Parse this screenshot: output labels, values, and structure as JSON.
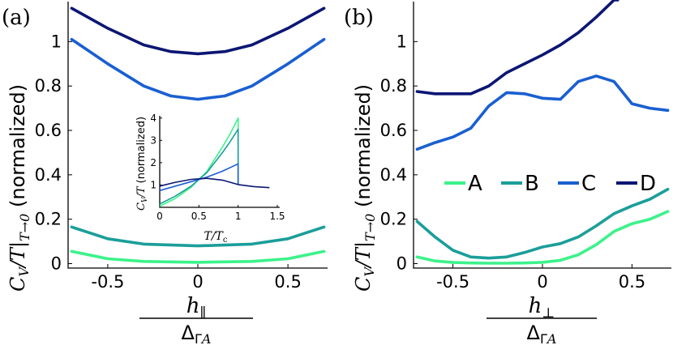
{
  "chart_data": [
    {
      "id": "a",
      "type": "line",
      "panel_label": "(a)",
      "ylabel": "C_V/T|_{T→0} (normalized)",
      "xlabel": "h_∥ / Δ_{ΓA}",
      "xlim": [
        -0.72,
        0.72
      ],
      "ylim": [
        -0.02,
        1.18
      ],
      "xticks": [
        -0.5,
        0,
        0.5
      ],
      "xtick_labels": [
        "-0.5",
        "0",
        "0.5"
      ],
      "yticks": [
        0,
        0.2,
        0.4,
        0.6,
        0.8,
        1
      ],
      "ytick_labels": [
        "0",
        "0.2",
        "0.4",
        "0.6",
        "0.8",
        "1"
      ],
      "series": [
        {
          "name": "A",
          "color": "#3cf28a",
          "x": [
            -0.7,
            -0.5,
            -0.3,
            0,
            0.3,
            0.5,
            0.7
          ],
          "y": [
            0.055,
            0.022,
            0.01,
            0.006,
            0.01,
            0.022,
            0.055
          ]
        },
        {
          "name": "B",
          "color": "#1b9e9a",
          "x": [
            -0.7,
            -0.5,
            -0.3,
            0,
            0.3,
            0.5,
            0.7
          ],
          "y": [
            0.165,
            0.112,
            0.088,
            0.08,
            0.088,
            0.112,
            0.165
          ]
        },
        {
          "name": "C",
          "color": "#1a5fd1",
          "x": [
            -0.7,
            -0.5,
            -0.3,
            -0.15,
            0,
            0.15,
            0.3,
            0.5,
            0.7
          ],
          "y": [
            1.01,
            0.9,
            0.8,
            0.755,
            0.74,
            0.755,
            0.8,
            0.9,
            1.01
          ]
        },
        {
          "name": "D",
          "color": "#0c1673",
          "x": [
            -0.7,
            -0.5,
            -0.3,
            -0.15,
            0,
            0.15,
            0.3,
            0.5,
            0.7
          ],
          "y": [
            1.15,
            1.06,
            0.985,
            0.955,
            0.945,
            0.955,
            0.985,
            1.06,
            1.15
          ]
        }
      ],
      "inset": {
        "xlabel": "T/T_c",
        "ylabel": "C_V/T (normalized)",
        "xlim": [
          0,
          1.5
        ],
        "ylim": [
          0,
          4.1
        ],
        "xticks": [
          0,
          0.5,
          1,
          1.5
        ],
        "xtick_labels": [
          "0",
          "0.5",
          "1",
          "1.5"
        ],
        "yticks": [
          1,
          2,
          3,
          4
        ],
        "ytick_labels": [
          "1",
          "2",
          "3",
          "4"
        ],
        "series": [
          {
            "name": "A",
            "color": "#3cf28a",
            "x": [
              0,
              0.2,
              0.4,
              0.6,
              0.8,
              0.9,
              1.0,
              1.0
            ],
            "y": [
              0.05,
              0.4,
              0.9,
              1.6,
              2.7,
              3.3,
              4.0,
              1.0
            ]
          },
          {
            "name": "B",
            "color": "#1b9e9a",
            "x": [
              0,
              0.2,
              0.4,
              0.6,
              0.8,
              0.9,
              1.0,
              1.0
            ],
            "y": [
              0.15,
              0.5,
              0.95,
              1.55,
              2.45,
              2.95,
              3.5,
              1.0
            ]
          },
          {
            "name": "C",
            "color": "#1a5fd1",
            "x": [
              0,
              0.2,
              0.4,
              0.6,
              0.8,
              1.0,
              1.0
            ],
            "y": [
              0.75,
              0.95,
              1.15,
              1.35,
              1.62,
              1.95,
              1.0
            ]
          },
          {
            "name": "D",
            "color": "#0c1673",
            "x": [
              0,
              0.2,
              0.4,
              0.6,
              0.8,
              1.0,
              1.2,
              1.4
            ],
            "y": [
              0.95,
              1.12,
              1.25,
              1.3,
              1.22,
              1.02,
              0.93,
              0.88
            ]
          }
        ]
      }
    },
    {
      "id": "b",
      "type": "line",
      "panel_label": "(b)",
      "ylabel": "C_V/T|_{T→0} (normalized)",
      "xlabel": "h_⊥ / Δ_{ΓA}",
      "xlim": [
        -0.72,
        0.72
      ],
      "ylim": [
        -0.02,
        1.18
      ],
      "xticks": [
        -0.5,
        0,
        0.5
      ],
      "xtick_labels": [
        "-0.5",
        "0",
        "0.5"
      ],
      "yticks": [
        0,
        0.2,
        0.4,
        0.6,
        0.8,
        1
      ],
      "ytick_labels": [
        "0",
        "0.2",
        "0.4",
        "0.6",
        "0.8",
        "1"
      ],
      "legend": {
        "entries": [
          "A",
          "B",
          "C",
          "D"
        ],
        "placement": "center-right"
      },
      "series": [
        {
          "name": "A",
          "color": "#3cf28a",
          "x": [
            -0.7,
            -0.6,
            -0.5,
            -0.4,
            -0.3,
            -0.2,
            -0.1,
            0,
            0.1,
            0.2,
            0.3,
            0.4,
            0.5,
            0.6,
            0.7
          ],
          "y": [
            0.03,
            0.012,
            0.005,
            0.003,
            0.002,
            0.002,
            0.003,
            0.006,
            0.015,
            0.04,
            0.085,
            0.145,
            0.18,
            0.2,
            0.235
          ]
        },
        {
          "name": "B",
          "color": "#1b9e9a",
          "x": [
            -0.7,
            -0.6,
            -0.5,
            -0.4,
            -0.3,
            -0.2,
            -0.1,
            0,
            0.1,
            0.2,
            0.3,
            0.4,
            0.5,
            0.6,
            0.7
          ],
          "y": [
            0.19,
            0.12,
            0.06,
            0.03,
            0.025,
            0.03,
            0.05,
            0.075,
            0.09,
            0.12,
            0.17,
            0.225,
            0.26,
            0.29,
            0.335
          ]
        },
        {
          "name": "C",
          "color": "#1a5fd1",
          "x": [
            -0.7,
            -0.6,
            -0.5,
            -0.4,
            -0.3,
            -0.2,
            -0.1,
            0,
            0.1,
            0.2,
            0.3,
            0.4,
            0.5,
            0.6,
            0.7
          ],
          "y": [
            0.515,
            0.545,
            0.57,
            0.61,
            0.71,
            0.77,
            0.765,
            0.745,
            0.74,
            0.82,
            0.845,
            0.82,
            0.72,
            0.7,
            0.69
          ]
        },
        {
          "name": "D",
          "color": "#0c1673",
          "x": [
            -0.7,
            -0.6,
            -0.5,
            -0.4,
            -0.3,
            -0.2,
            -0.1,
            0,
            0.1,
            0.2,
            0.3,
            0.4,
            0.42
          ],
          "y": [
            0.775,
            0.765,
            0.765,
            0.765,
            0.8,
            0.86,
            0.9,
            0.94,
            0.985,
            1.04,
            1.11,
            1.19,
            1.2
          ]
        }
      ]
    }
  ]
}
